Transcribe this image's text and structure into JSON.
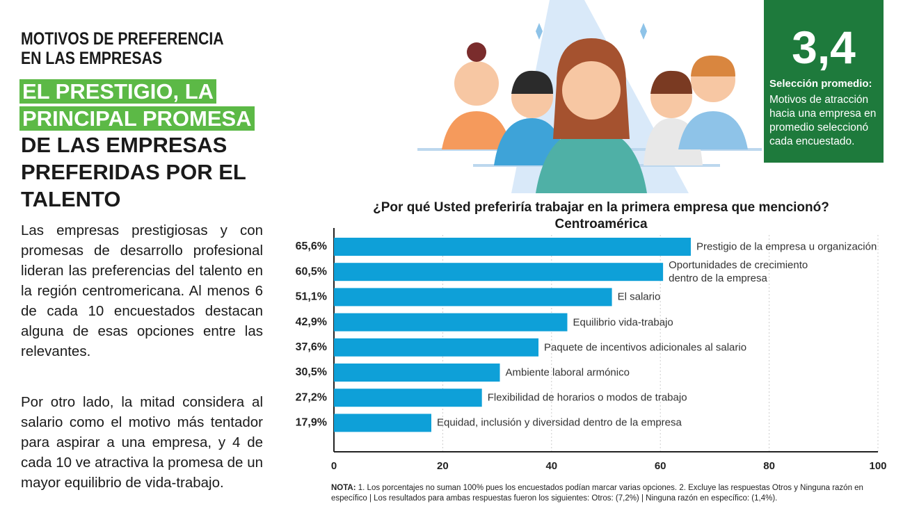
{
  "header": {
    "kicker": [
      "MOTIVOS DE PREFERENCIA",
      "EN LAS EMPRESAS"
    ],
    "highlight": [
      "EL PRESTIGIO, LA",
      "PRINCIPAL PROMESA"
    ],
    "headline": [
      "DE LAS EMPRESAS",
      "PREFERIDAS POR EL",
      "TALENTO"
    ]
  },
  "body": [
    "Las empresas prestigiosas y con promesas de desarrollo profesional lideran las preferencias del talento en la región centromericana. Al menos 6 de cada 10 encuestados destacan alguna de esas opciones entre las relevantes.",
    "Por otro lado, la mitad considera al salario como el motivo más tentador para aspirar a una empresa, y 4 de cada 10 ve atractiva la promesa de un mayor equilibrio de vida-trabajo."
  ],
  "stat": {
    "value": "3,4",
    "label": "Selección promedio:",
    "text": "Motivos de atracción hacia una empresa en promedio seleccionó cada encuestado."
  },
  "chart_data": {
    "type": "hbar",
    "title": "¿Por qué Usted preferiría  trabajar en la primera empresa que mencionó?",
    "subtitle": "Centroamérica",
    "categories": [
      "Prestigio de la empresa u organización",
      "Oportunidades de crecimiento\ndentro de la empresa",
      "El salario",
      "Equilibrio vida-trabajo",
      "Paquete de incentivos adicionales al salario",
      "Ambiente laboral armónico",
      "Flexibilidad de horarios o modos de trabajo",
      "Equidad, inclusión y diversidad dentro de la empresa"
    ],
    "values": [
      65.6,
      60.5,
      51.1,
      42.9,
      37.6,
      30.5,
      27.2,
      17.9
    ],
    "value_labels": [
      "65,6%",
      "60,5%",
      "51,1%",
      "42,9%",
      "37,6%",
      "30,5%",
      "27,2%",
      "17,9%"
    ],
    "color": "#0ea0d8",
    "xlim": [
      0,
      100
    ],
    "xticks": [
      0,
      20,
      40,
      60,
      80,
      100
    ],
    "grid": true
  },
  "note": {
    "label": "NOTA:",
    "text": "1. Los porcentajes no suman 100% pues los encuestados podían marcar varias opciones. 2. Excluye las respuestas Otros y Ninguna razón en específico | Los resultados para ambas respuestas fueron los siguientes: Otros: (7,2%) | Ninguna razón en específico: (1,4%)."
  }
}
